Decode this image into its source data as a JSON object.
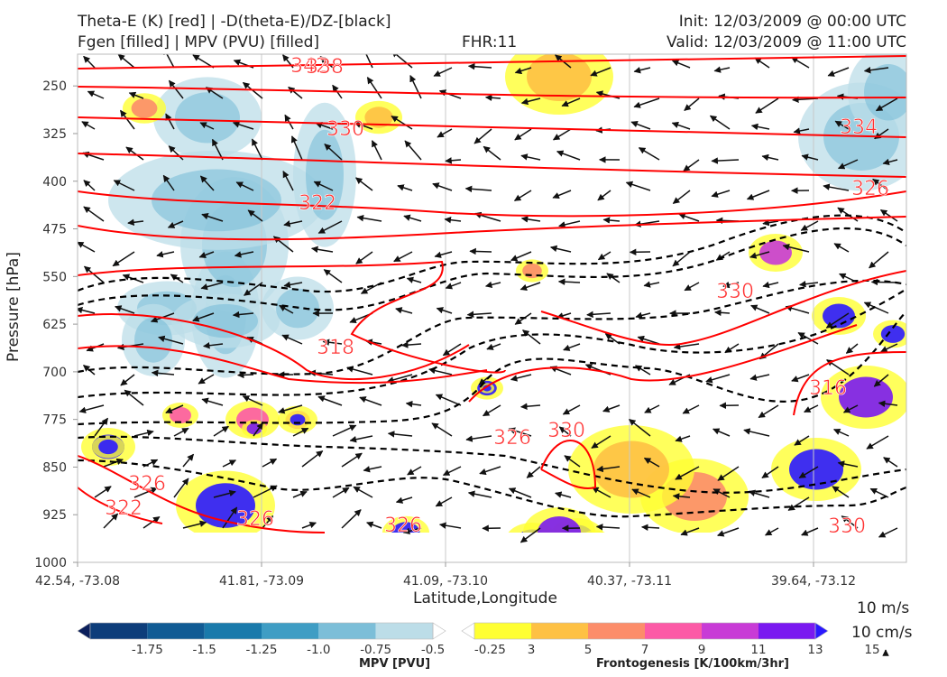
{
  "header": {
    "title_line1": "Theta-E (K) [red] | -D(theta-E)/DZ-[black]",
    "title_line2": "Fgen [filled] | MPV (PVU) [filled]",
    "fhr": "FHR:11",
    "init": "Init: 12/03/2009 @ 00:00 UTC",
    "valid": "Valid: 12/03/2009 @ 11:00 UTC"
  },
  "chart_data": {
    "type": "cross-section",
    "xlabel": "Latitude,Longitude",
    "ylabel": "Pressure [hPa]",
    "ylim": [
      1000,
      200
    ],
    "y_ticks": [
      "250",
      "325",
      "400",
      "475",
      "550",
      "625",
      "700",
      "775",
      "850",
      "925",
      "1000"
    ],
    "x_ticks": [
      "42.54, -73.08",
      "41.81, -73.09",
      "41.09, -73.10",
      "40.37, -73.11",
      "39.64, -73.12"
    ],
    "theta_e_contour_labels": [
      "342",
      "338",
      "334",
      "330",
      "326",
      "322",
      "318",
      "330",
      "326",
      "330",
      "326",
      "326",
      "326",
      "322",
      "316",
      "330"
    ],
    "grid": true,
    "colors": {
      "theta_e": "#ff0000",
      "dthetae_dz": "#000000"
    }
  },
  "wind_key": {
    "line1": "10 m/s",
    "line2": "10 cm/s"
  },
  "mpv_colorbar": {
    "title": "MPV [PVU]",
    "ticks": [
      "-1.75",
      "-1.5",
      "-1.25",
      "-1.0",
      "-0.75",
      "-0.5",
      "-0.25"
    ],
    "colors": [
      "#0b1f5c",
      "#0d3d7a",
      "#115b94",
      "#1a7aab",
      "#3f9dc4",
      "#7cbed8",
      "#bcdde8",
      "#ffffff"
    ]
  },
  "fgen_colorbar": {
    "title": "Frontogenesis [K/100km/3hr]",
    "ticks": [
      "3",
      "5",
      "7",
      "9",
      "11",
      "13",
      "15"
    ],
    "colors": [
      "#ffffff",
      "#ffff33",
      "#fec144",
      "#fc8d6a",
      "#fc5aa6",
      "#c83bd6",
      "#7a19f0",
      "#2a18ff"
    ]
  }
}
